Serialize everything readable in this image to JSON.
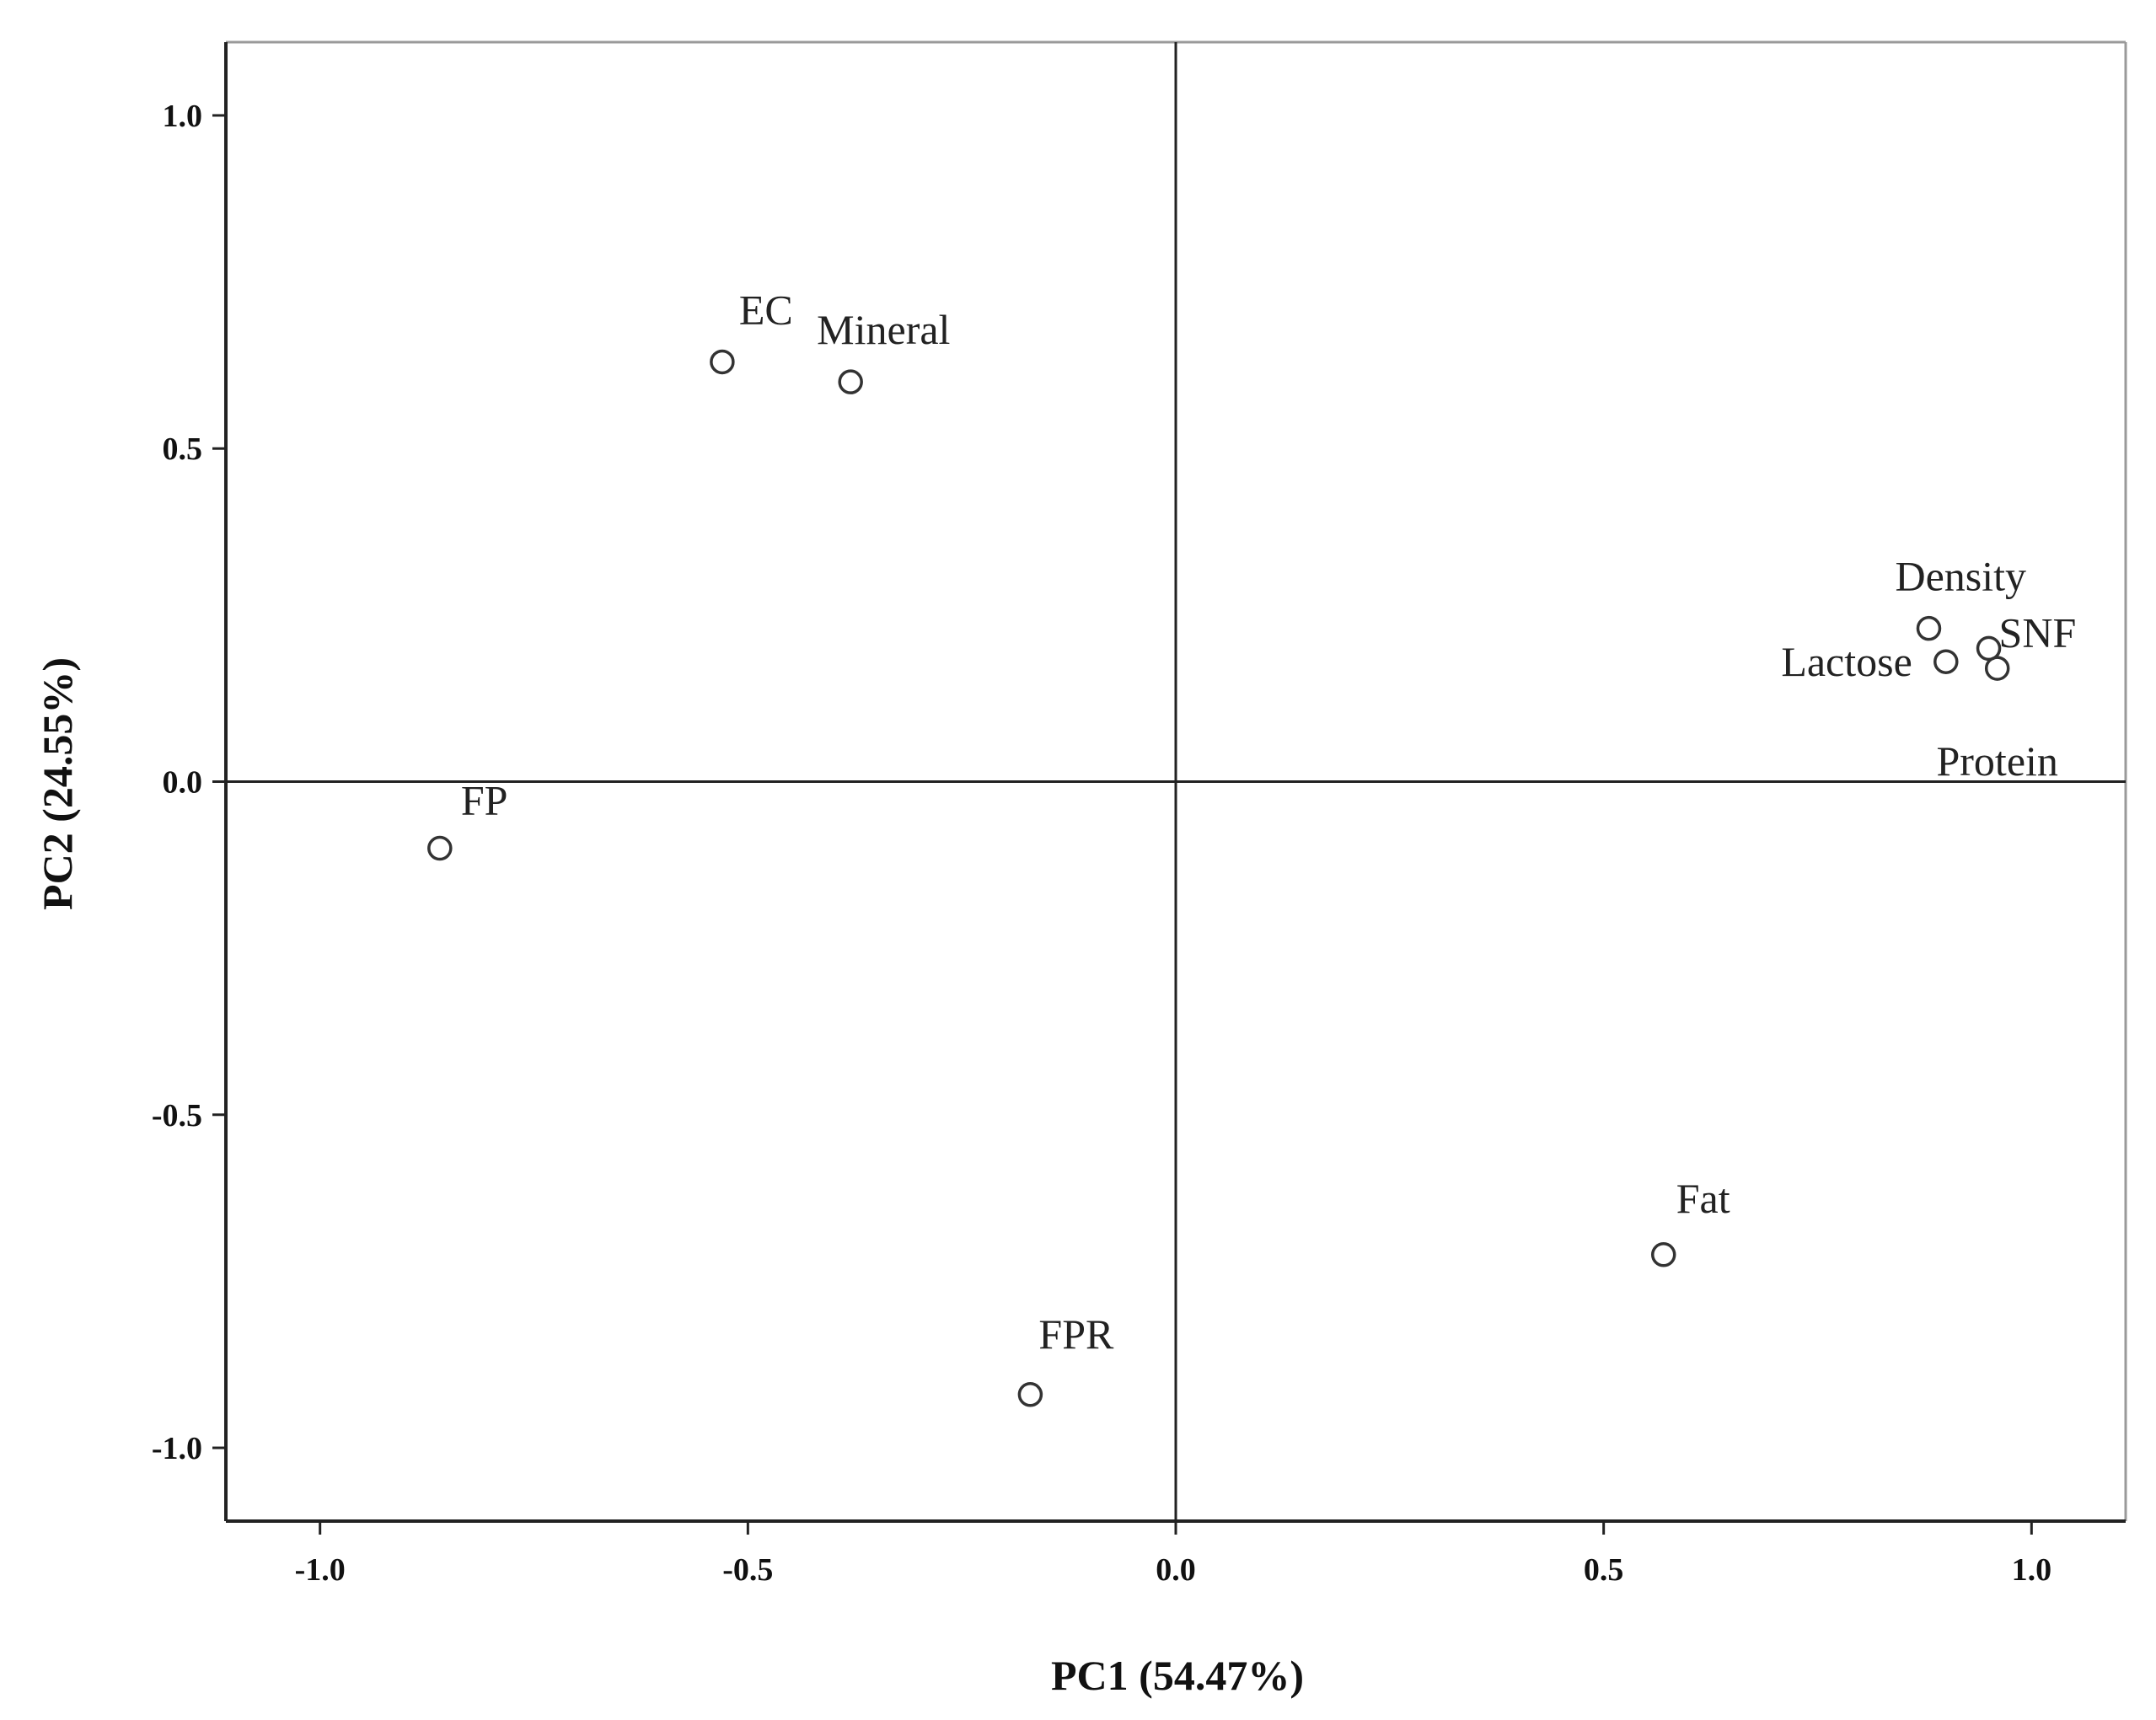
{
  "chart_data": {
    "type": "scatter",
    "title": "",
    "xlabel": "PC1 (54.47%)",
    "ylabel": "PC2 (24.55%)",
    "xlim": [
      -1.11,
      1.11
    ],
    "ylim": [
      -1.11,
      1.11
    ],
    "xticks": [
      -1.0,
      -0.5,
      0.0,
      0.5,
      1.0
    ],
    "xtick_labels": [
      "-1.0",
      "-0.5",
      "0.0",
      "0.5",
      "1.0"
    ],
    "yticks": [
      -1.0,
      -0.5,
      0.0,
      0.5,
      1.0
    ],
    "ytick_labels": [
      "-1.0",
      "-0.5",
      "0.0",
      "0.5",
      "1.0"
    ],
    "reference_lines": {
      "x": 0,
      "y": 0
    },
    "grid": false,
    "marker": "open-circle",
    "points": [
      {
        "label": "EC",
        "x": -0.53,
        "y": 0.63
      },
      {
        "label": "Mineral",
        "x": -0.38,
        "y": 0.6
      },
      {
        "label": "FP",
        "x": -0.86,
        "y": -0.1
      },
      {
        "label": "FPR",
        "x": -0.17,
        "y": -0.92
      },
      {
        "label": "Fat",
        "x": 0.57,
        "y": -0.71
      },
      {
        "label": "Density",
        "x": 0.88,
        "y": 0.23
      },
      {
        "label": "Lactose",
        "x": 0.9,
        "y": 0.18
      },
      {
        "label": "SNF",
        "x": 0.95,
        "y": 0.2
      },
      {
        "label": "Protein",
        "x": 0.96,
        "y": 0.17
      }
    ]
  }
}
